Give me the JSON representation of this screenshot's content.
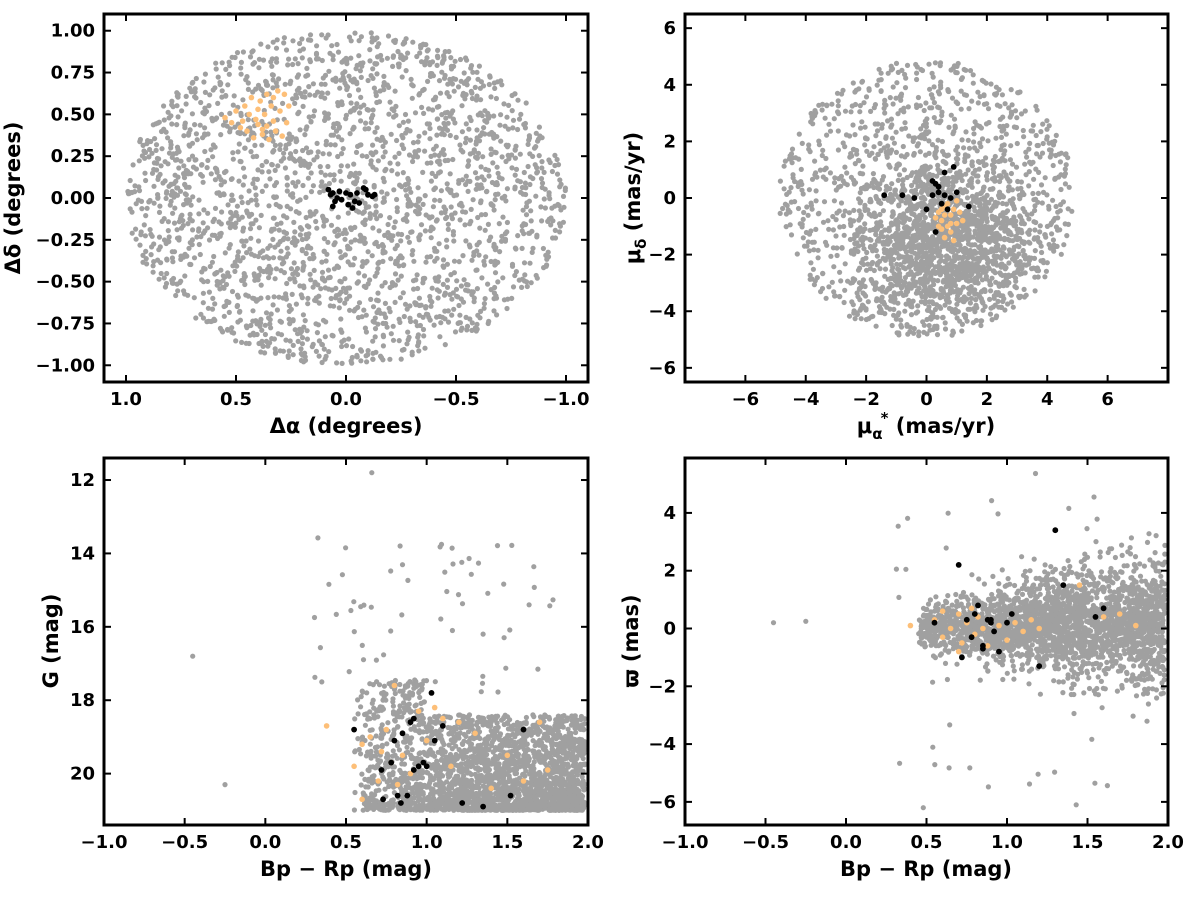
{
  "colors": {
    "field": "#a0a0a0",
    "cluster_core": "#000000",
    "cluster_b": "#fdbf78"
  },
  "chart_data": [
    {
      "type": "scatter",
      "xlabel": "Δα (degrees)",
      "ylabel": "Δδ (degrees)",
      "xlim": [
        1.1,
        -1.1
      ],
      "ylim": [
        -1.1,
        1.1
      ],
      "x_inverted": true,
      "xticks": [
        1.0,
        0.5,
        0.0,
        -0.5,
        -1.0
      ],
      "xtick_labels": [
        "1.0",
        "0.5",
        "0.0",
        "−0.5",
        "−1.0"
      ],
      "yticks": [
        1.0,
        0.75,
        0.5,
        0.25,
        0.0,
        -0.25,
        -0.5,
        -0.75,
        -1.0
      ],
      "ytick_labels": [
        "1.00",
        "0.75",
        "0.50",
        "0.25",
        "0.00",
        "−0.25",
        "−0.50",
        "−0.75",
        "−1.00"
      ],
      "background_field": {
        "description": "uniform field stars within a circle of radius 1 deg",
        "center": [
          0,
          0
        ],
        "radius": 1.0,
        "n": 2500
      },
      "series": [
        {
          "color": "#fdbf78",
          "points": [
            [
              0.55,
              0.48
            ],
            [
              0.52,
              0.45
            ],
            [
              0.5,
              0.52
            ],
            [
              0.48,
              0.42
            ],
            [
              0.46,
              0.55
            ],
            [
              0.45,
              0.4
            ],
            [
              0.44,
              0.5
            ],
            [
              0.43,
              0.6
            ],
            [
              0.42,
              0.36
            ],
            [
              0.41,
              0.47
            ],
            [
              0.4,
              0.53
            ],
            [
              0.4,
              0.44
            ],
            [
              0.39,
              0.58
            ],
            [
              0.38,
              0.38
            ],
            [
              0.37,
              0.5
            ],
            [
              0.36,
              0.43
            ],
            [
              0.36,
              0.62
            ],
            [
              0.35,
              0.35
            ],
            [
              0.34,
              0.55
            ],
            [
              0.33,
              0.46
            ],
            [
              0.32,
              0.4
            ],
            [
              0.31,
              0.64
            ],
            [
              0.3,
              0.52
            ],
            [
              0.29,
              0.37
            ],
            [
              0.28,
              0.62
            ],
            [
              0.27,
              0.45
            ],
            [
              0.26,
              0.55
            ],
            [
              0.33,
              0.6
            ],
            [
              0.47,
              0.46
            ],
            [
              0.38,
              0.41
            ]
          ]
        },
        {
          "color": "#000000",
          "points": [
            [
              0.08,
              0.05
            ],
            [
              0.07,
              0.02
            ],
            [
              0.06,
              0.03
            ],
            [
              0.06,
              -0.05
            ],
            [
              0.05,
              -0.02
            ],
            [
              0.04,
              0.0
            ],
            [
              0.03,
              0.04
            ],
            [
              0.02,
              -0.01
            ],
            [
              0.0,
              0.03
            ],
            [
              -0.01,
              -0.04
            ],
            [
              -0.02,
              0.02
            ],
            [
              -0.03,
              -0.06
            ],
            [
              -0.04,
              -0.02
            ],
            [
              -0.05,
              0.03
            ],
            [
              -0.06,
              -0.03
            ],
            [
              -0.08,
              0.06
            ],
            [
              -0.09,
              0.05
            ],
            [
              -0.1,
              0.02
            ],
            [
              -0.12,
              0.01
            ],
            [
              -0.13,
              0.02
            ]
          ]
        }
      ]
    },
    {
      "type": "scatter",
      "xlabel": "μα* (mas/yr)",
      "xlabel_main": "μ",
      "xlabel_sub": "α",
      "xlabel_sup": "*",
      "xlabel_units": " (mas/yr)",
      "ylabel": "μδ (mas/yr)",
      "ylabel_main": "μ",
      "ylabel_sub": "δ",
      "ylabel_units": " (mas/yr)",
      "xlim": [
        -8,
        8
      ],
      "ylim": [
        -6.5,
        6.5
      ],
      "xticks": [
        -6,
        -4,
        -2,
        0,
        2,
        4,
        6
      ],
      "xtick_labels": [
        "−6",
        "−4",
        "−2",
        "0",
        "2",
        "4",
        "6"
      ],
      "yticks": [
        6,
        4,
        2,
        0,
        -2,
        -4,
        -6
      ],
      "ytick_labels": [
        "6",
        "4",
        "2",
        "0",
        "−2",
        "−4",
        "−6"
      ],
      "background_field": {
        "description": "field stars in a circle of radius 5 mas/yr centred at (0,0), concentrated near (0.5,-1.5)",
        "center": [
          0,
          0
        ],
        "radius": 5.0,
        "n": 2500
      },
      "series": [
        {
          "color": "#fdbf78",
          "points": [
            [
              0.4,
              -0.5
            ],
            [
              0.5,
              -0.8
            ],
            [
              0.6,
              -0.3
            ],
            [
              0.7,
              -1.0
            ],
            [
              0.8,
              -0.6
            ],
            [
              0.9,
              -0.4
            ],
            [
              1.0,
              -0.9
            ],
            [
              0.6,
              -1.4
            ],
            [
              0.5,
              -1.1
            ],
            [
              0.3,
              -0.7
            ],
            [
              1.1,
              -0.5
            ],
            [
              0.8,
              -1.2
            ],
            [
              0.7,
              -0.2
            ],
            [
              0.9,
              -1.5
            ],
            [
              1.2,
              -0.8
            ],
            [
              0.4,
              -1.0
            ],
            [
              0.6,
              -0.6
            ],
            [
              1.0,
              -0.1
            ],
            [
              0.5,
              -0.4
            ],
            [
              0.8,
              -0.9
            ]
          ]
        },
        {
          "color": "#000000",
          "points": [
            [
              -1.4,
              0.1
            ],
            [
              -0.8,
              0.1
            ],
            [
              -0.4,
              0.0
            ],
            [
              0.0,
              -0.4
            ],
            [
              0.2,
              0.6
            ],
            [
              0.3,
              0.5
            ],
            [
              0.2,
              0.1
            ],
            [
              0.4,
              0.2
            ],
            [
              0.5,
              -0.2
            ],
            [
              0.6,
              0.1
            ],
            [
              0.7,
              -0.4
            ],
            [
              0.8,
              0.0
            ],
            [
              0.9,
              1.1
            ],
            [
              1.0,
              0.2
            ],
            [
              0.3,
              -1.2
            ],
            [
              1.4,
              -0.3
            ],
            [
              0.4,
              0.4
            ],
            [
              0.6,
              0.9
            ]
          ]
        }
      ]
    },
    {
      "type": "scatter",
      "xlabel": "Bp − Rp (mag)",
      "ylabel": "G (mag)",
      "xlim": [
        -1.0,
        2.0
      ],
      "ylim": [
        21.4,
        11.4
      ],
      "y_inverted": true,
      "xticks": [
        -1.0,
        -0.5,
        0.0,
        0.5,
        1.0,
        1.5,
        2.0
      ],
      "xtick_labels": [
        "−1.0",
        "−0.5",
        "0.0",
        "0.5",
        "1.0",
        "1.5",
        "2.0"
      ],
      "yticks": [
        20,
        18,
        16,
        14,
        12
      ],
      "ytick_labels": [
        "20",
        "18",
        "16",
        "14",
        "12"
      ],
      "background_field": {
        "description": "field stars, dense band 0.5–2.0 mag colour, G 18–21"
      },
      "series": [
        {
          "color": "#fdbf78",
          "points": [
            [
              0.38,
              18.7
            ],
            [
              0.55,
              19.8
            ],
            [
              0.6,
              19.2
            ],
            [
              0.65,
              19.0
            ],
            [
              0.7,
              20.2
            ],
            [
              0.72,
              19.4
            ],
            [
              0.75,
              18.8
            ],
            [
              0.8,
              17.6
            ],
            [
              0.82,
              20.3
            ],
            [
              0.85,
              19.5
            ],
            [
              0.9,
              20.0
            ],
            [
              0.95,
              18.3
            ],
            [
              1.0,
              19.1
            ],
            [
              1.05,
              18.2
            ],
            [
              1.1,
              18.5
            ],
            [
              1.15,
              19.8
            ],
            [
              1.2,
              18.6
            ],
            [
              1.3,
              18.9
            ],
            [
              1.5,
              19.5
            ],
            [
              1.6,
              20.2
            ],
            [
              1.7,
              18.6
            ],
            [
              1.75,
              19.9
            ],
            [
              0.6,
              20.7
            ],
            [
              0.78,
              19.7
            ],
            [
              1.4,
              20.4
            ]
          ]
        },
        {
          "color": "#000000",
          "points": [
            [
              0.55,
              18.8
            ],
            [
              0.72,
              19.9
            ],
            [
              0.73,
              20.7
            ],
            [
              0.78,
              19.7
            ],
            [
              0.8,
              19.1
            ],
            [
              0.82,
              20.6
            ],
            [
              0.84,
              20.8
            ],
            [
              0.85,
              18.9
            ],
            [
              0.88,
              20.6
            ],
            [
              0.9,
              18.6
            ],
            [
              0.92,
              19.9
            ],
            [
              0.95,
              19.8
            ],
            [
              0.98,
              19.7
            ],
            [
              1.0,
              19.8
            ],
            [
              1.03,
              17.8
            ],
            [
              1.05,
              19.1
            ],
            [
              1.1,
              18.7
            ],
            [
              1.22,
              20.8
            ],
            [
              1.35,
              20.9
            ],
            [
              1.52,
              20.6
            ],
            [
              1.6,
              18.8
            ],
            [
              0.92,
              18.5
            ]
          ]
        }
      ]
    },
    {
      "type": "scatter",
      "xlabel": "Bp − Rp (mag)",
      "ylabel": "ϖ (mas)",
      "xlim": [
        -1.0,
        2.0
      ],
      "ylim": [
        -6.8,
        5.9
      ],
      "xticks": [
        -1.0,
        -0.5,
        0.0,
        0.5,
        1.0,
        1.5,
        2.0
      ],
      "xtick_labels": [
        "−1.0",
        "−0.5",
        "0.0",
        "0.5",
        "1.0",
        "1.5",
        "2.0"
      ],
      "yticks": [
        4,
        2,
        0,
        -2,
        -4,
        -6
      ],
      "ytick_labels": [
        "4",
        "2",
        "0",
        "−2",
        "−4",
        "−6"
      ],
      "background_field": {
        "description": "field stars, dense band around ϖ=0 from colour 0.4 to 2.0"
      },
      "series": [
        {
          "color": "#fdbf78",
          "points": [
            [
              0.4,
              0.1
            ],
            [
              0.55,
              0.3
            ],
            [
              0.6,
              -0.3
            ],
            [
              0.65,
              0.0
            ],
            [
              0.7,
              0.5
            ],
            [
              0.72,
              -0.5
            ],
            [
              0.75,
              0.2
            ],
            [
              0.78,
              0.7
            ],
            [
              0.8,
              -0.2
            ],
            [
              0.82,
              0.4
            ],
            [
              0.85,
              0.0
            ],
            [
              0.88,
              -0.6
            ],
            [
              0.9,
              0.3
            ],
            [
              0.95,
              0.1
            ],
            [
              1.0,
              -0.4
            ],
            [
              1.05,
              0.2
            ],
            [
              1.1,
              -0.1
            ],
            [
              1.15,
              0.3
            ],
            [
              1.2,
              0.0
            ],
            [
              1.45,
              1.5
            ],
            [
              1.6,
              0.4
            ],
            [
              1.7,
              0.5
            ],
            [
              1.8,
              0.1
            ],
            [
              0.6,
              0.6
            ],
            [
              0.7,
              -0.8
            ]
          ]
        },
        {
          "color": "#000000",
          "points": [
            [
              0.55,
              0.2
            ],
            [
              0.7,
              2.2
            ],
            [
              0.72,
              -1.0
            ],
            [
              0.75,
              0.3
            ],
            [
              0.78,
              -0.3
            ],
            [
              0.8,
              0.5
            ],
            [
              0.82,
              0.8
            ],
            [
              0.85,
              -0.6
            ],
            [
              0.88,
              0.3
            ],
            [
              0.9,
              0.2
            ],
            [
              0.92,
              -0.1
            ],
            [
              0.95,
              -0.8
            ],
            [
              1.0,
              0.2
            ],
            [
              1.03,
              0.5
            ],
            [
              1.2,
              -1.3
            ],
            [
              1.3,
              3.4
            ],
            [
              1.35,
              1.5
            ],
            [
              1.55,
              0.4
            ],
            [
              1.6,
              0.7
            ],
            [
              0.85,
              -0.7
            ],
            [
              0.9,
              0.3
            ]
          ]
        }
      ]
    }
  ]
}
